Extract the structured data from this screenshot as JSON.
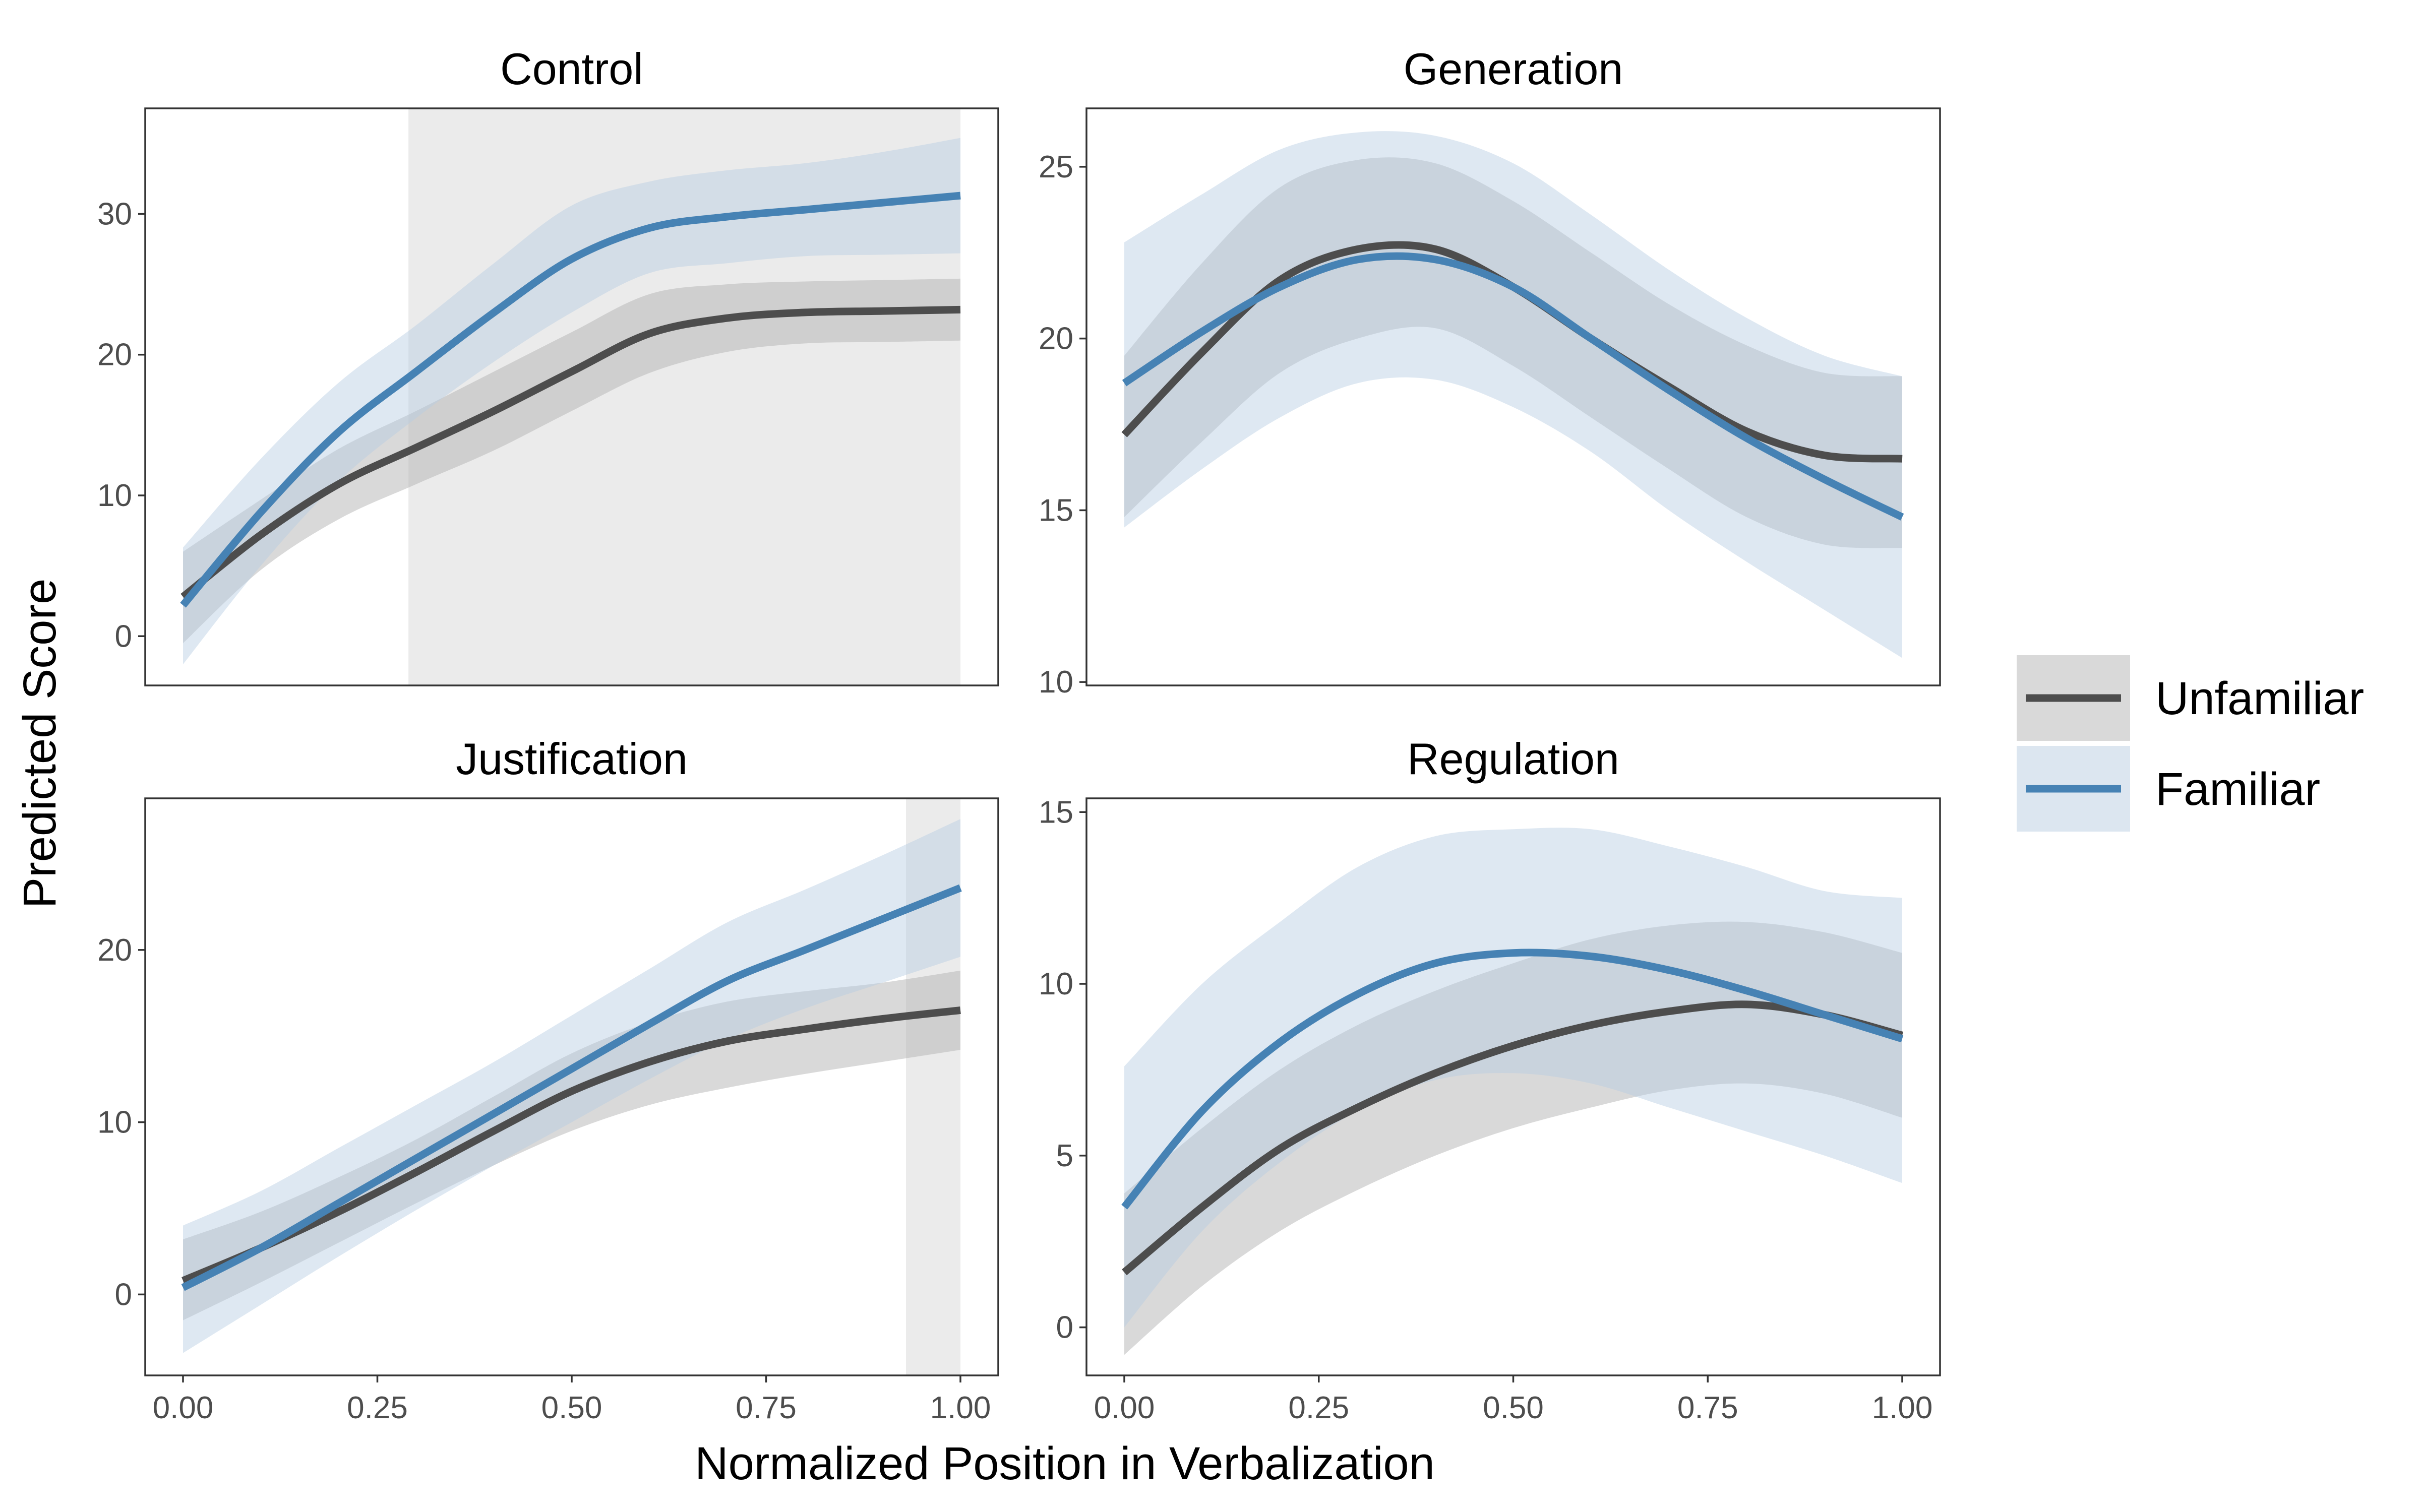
{
  "chart_data": {
    "type": "line",
    "layout": "2x2 facets",
    "xlabel": "Normalized Position in Verbalization",
    "ylabel": "Predicted Score",
    "xlim": [
      0,
      1
    ],
    "x_ticks": [
      "0.00",
      "0.25",
      "0.50",
      "0.75",
      "1.00"
    ],
    "legend": {
      "placement": "right",
      "entries": [
        {
          "key": "unfamiliar",
          "label": "Unfamiliar",
          "line_color": "#4d4d4d",
          "band_color": "#d9d9d9"
        },
        {
          "key": "familiar",
          "label": "Familiar",
          "line_color": "#4682b4",
          "band_color": "#dce6f0"
        }
      ]
    },
    "panels": [
      {
        "title": "Control",
        "ylim": [
          -3.5,
          37.5
        ],
        "y_ticks": [
          0,
          10,
          20,
          30
        ],
        "show_x_ticks": false,
        "shaded_x_range": [
          0.29,
          1.0
        ],
        "series": [
          {
            "key": "unfamiliar",
            "x": [
              0,
              0.1,
              0.2,
              0.3,
              0.4,
              0.5,
              0.6,
              0.7,
              0.8,
              0.9,
              1.0
            ],
            "y": [
              2.8,
              7.2,
              10.8,
              13.4,
              16.0,
              18.8,
              21.5,
              22.6,
              23.0,
              23.1,
              23.2
            ],
            "lower": [
              -0.5,
              4.7,
              8.3,
              10.8,
              13.2,
              16.0,
              18.7,
              20.2,
              20.8,
              20.9,
              21.0
            ],
            "upper": [
              6.0,
              9.7,
              13.3,
              16.0,
              18.8,
              21.6,
              24.3,
              25.0,
              25.2,
              25.3,
              25.4
            ]
          },
          {
            "key": "familiar",
            "x": [
              0,
              0.1,
              0.2,
              0.3,
              0.4,
              0.5,
              0.6,
              0.7,
              0.8,
              0.9,
              1.0
            ],
            "y": [
              2.2,
              8.8,
              14.5,
              18.8,
              23.0,
              26.8,
              29.0,
              29.8,
              30.3,
              30.8,
              31.3
            ],
            "lower": [
              -2.0,
              5.0,
              11.0,
              15.5,
              19.5,
              23.0,
              25.8,
              26.5,
              27.0,
              27.1,
              27.2
            ],
            "upper": [
              6.3,
              12.6,
              18.0,
              22.1,
              26.5,
              30.6,
              32.3,
              33.1,
              33.6,
              34.4,
              35.4
            ]
          }
        ]
      },
      {
        "title": "Generation",
        "ylim": [
          9.9,
          26.7
        ],
        "y_ticks": [
          10,
          15,
          20,
          25
        ],
        "show_x_ticks": false,
        "series": [
          {
            "key": "unfamiliar",
            "x": [
              0,
              0.1,
              0.2,
              0.3,
              0.4,
              0.5,
              0.6,
              0.7,
              0.8,
              0.9,
              1.0
            ],
            "y": [
              17.2,
              19.6,
              21.7,
              22.6,
              22.6,
              21.5,
              20.0,
              18.6,
              17.3,
              16.6,
              16.5
            ],
            "lower": [
              14.8,
              17.0,
              19.0,
              20.0,
              20.3,
              19.2,
              17.7,
              16.2,
              14.8,
              14.0,
              13.9
            ],
            "upper": [
              19.5,
              22.2,
              24.4,
              25.2,
              25.1,
              24.0,
              22.5,
              21.0,
              19.8,
              19.0,
              18.9
            ]
          },
          {
            "key": "familiar",
            "x": [
              0,
              0.1,
              0.2,
              0.3,
              0.4,
              0.5,
              0.6,
              0.7,
              0.8,
              0.9,
              1.0
            ],
            "y": [
              18.7,
              20.2,
              21.5,
              22.3,
              22.3,
              21.5,
              20.0,
              18.5,
              17.1,
              15.9,
              14.8
            ],
            "lower": [
              14.5,
              16.2,
              17.7,
              18.7,
              18.8,
              18.0,
              16.7,
              15.0,
              13.5,
              12.1,
              10.7
            ],
            "upper": [
              22.8,
              24.2,
              25.5,
              26.0,
              25.9,
              25.1,
              23.6,
              22.0,
              20.6,
              19.5,
              18.9
            ]
          }
        ]
      },
      {
        "title": "Justification",
        "ylim": [
          -4.7,
          28.8
        ],
        "y_ticks": [
          0,
          10,
          20
        ],
        "show_x_ticks": true,
        "shaded_x_range": [
          0.93,
          1.0
        ],
        "series": [
          {
            "key": "unfamiliar",
            "x": [
              0,
              0.1,
              0.2,
              0.3,
              0.4,
              0.5,
              0.6,
              0.7,
              0.8,
              0.9,
              1.0
            ],
            "y": [
              0.8,
              2.7,
              4.8,
              7.1,
              9.5,
              11.8,
              13.5,
              14.7,
              15.4,
              16.0,
              16.5
            ],
            "lower": [
              -1.5,
              0.7,
              3.0,
              5.3,
              7.5,
              9.5,
              11.0,
              12.0,
              12.8,
              13.5,
              14.2
            ],
            "upper": [
              3.2,
              4.8,
              6.8,
              9.0,
              11.5,
              14.0,
              15.8,
              17.0,
              17.6,
              18.1,
              18.8
            ]
          },
          {
            "key": "familiar",
            "x": [
              0,
              0.1,
              0.2,
              0.3,
              0.4,
              0.5,
              0.6,
              0.7,
              0.8,
              0.9,
              1.0
            ],
            "y": [
              0.4,
              2.7,
              5.3,
              7.9,
              10.5,
              13.1,
              15.7,
              18.2,
              20.0,
              21.8,
              23.6
            ],
            "lower": [
              -3.4,
              -0.6,
              2.2,
              4.9,
              7.5,
              10.0,
              12.5,
              14.8,
              16.6,
              18.1,
              19.6
            ],
            "upper": [
              4.0,
              6.0,
              8.5,
              11.0,
              13.5,
              16.2,
              18.9,
              21.6,
              23.5,
              25.5,
              27.6
            ]
          }
        ]
      },
      {
        "title": "Regulation",
        "ylim": [
          -1.4,
          15.4
        ],
        "y_ticks": [
          0,
          5,
          10,
          15
        ],
        "show_x_ticks": true,
        "series": [
          {
            "key": "unfamiliar",
            "x": [
              0,
              0.1,
              0.2,
              0.3,
              0.4,
              0.5,
              0.6,
              0.7,
              0.8,
              0.9,
              1.0
            ],
            "y": [
              1.6,
              3.5,
              5.2,
              6.4,
              7.4,
              8.2,
              8.8,
              9.2,
              9.4,
              9.1,
              8.5
            ],
            "lower": [
              -0.8,
              1.2,
              2.8,
              4.0,
              5.0,
              5.8,
              6.4,
              6.9,
              7.1,
              6.8,
              6.1
            ],
            "upper": [
              3.9,
              5.8,
              7.5,
              8.8,
              9.8,
              10.6,
              11.3,
              11.7,
              11.8,
              11.5,
              10.9
            ]
          },
          {
            "key": "familiar",
            "x": [
              0,
              0.1,
              0.2,
              0.3,
              0.4,
              0.5,
              0.6,
              0.7,
              0.8,
              0.9,
              1.0
            ],
            "y": [
              3.5,
              6.3,
              8.3,
              9.7,
              10.6,
              10.9,
              10.8,
              10.4,
              9.8,
              9.1,
              8.4
            ],
            "lower": [
              0.0,
              2.8,
              4.8,
              6.3,
              7.2,
              7.4,
              7.1,
              6.4,
              5.7,
              5.0,
              4.2
            ],
            "upper": [
              7.6,
              10.0,
              11.8,
              13.4,
              14.3,
              14.5,
              14.5,
              14.0,
              13.4,
              12.7,
              12.5
            ]
          }
        ]
      }
    ]
  }
}
